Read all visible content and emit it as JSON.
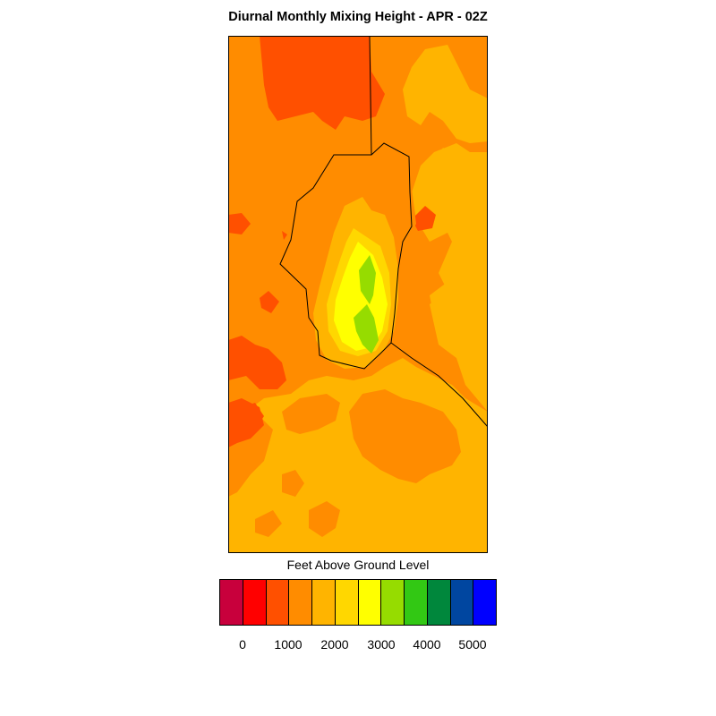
{
  "title": "Diurnal Monthly Mixing Height - APR - 02Z",
  "legend": {
    "title": "Feet Above Ground Level",
    "colors": [
      "#c8003c",
      "#ff0000",
      "#ff5000",
      "#ff8c00",
      "#ffb400",
      "#ffd700",
      "#ffff00",
      "#96dc00",
      "#32c814",
      "#00873c",
      "#0046a0",
      "#0000ff"
    ],
    "tick_labels": [
      "0",
      "1000",
      "2000",
      "3000",
      "4000",
      "5000"
    ]
  },
  "map_colors": {
    "red_orange": "#ff5000",
    "orange": "#ff8c00",
    "amber": "#ffb400",
    "gold": "#ffd700",
    "yellow": "#ffff00",
    "yellow_green": "#96dc00",
    "boundary": "#000000"
  }
}
